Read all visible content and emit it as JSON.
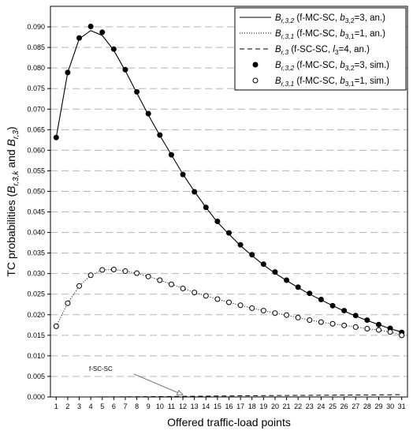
{
  "chart_data": {
    "type": "line",
    "xlabel": "Offered traffic-load points",
    "ylabel": "TC probabilities (B_{r,3,k} and B_{r,3})",
    "x": [
      1,
      2,
      3,
      4,
      5,
      6,
      7,
      8,
      9,
      10,
      11,
      12,
      13,
      14,
      15,
      16,
      17,
      18,
      19,
      20,
      21,
      22,
      23,
      24,
      25,
      26,
      27,
      28,
      29,
      30,
      31
    ],
    "xlim": [
      0.5,
      31.5
    ],
    "ylim": [
      0,
      0.095
    ],
    "yticks": [
      "0.000",
      "0.005",
      "0.010",
      "0.015",
      "0.020",
      "0.025",
      "0.030",
      "0.035",
      "0.040",
      "0.045",
      "0.050",
      "0.055",
      "0.060",
      "0.065",
      "0.070",
      "0.075",
      "0.080",
      "0.085",
      "0.090"
    ],
    "grid": "horizontal dashed",
    "legend_position": "top-right",
    "series": [
      {
        "name": "B_{r,3,2} (f-MC-SC, b_{3,2}=3, an.)",
        "style": "solid-line",
        "values": [
          0.0631,
          0.0789,
          0.0871,
          0.0891,
          0.0879,
          0.0843,
          0.0793,
          0.0739,
          0.0686,
          0.0636,
          0.0589,
          0.0542,
          0.05,
          0.0461,
          0.0425,
          0.0396,
          0.0368,
          0.0344,
          0.0321,
          0.0301,
          0.0283,
          0.0266,
          0.025,
          0.0236,
          0.0222,
          0.0209,
          0.0197,
          0.0186,
          0.0176,
          0.0166,
          0.0158
        ]
      },
      {
        "name": "B_{r,3,1} (f-MC-SC, b_{3,1}=1, an.)",
        "style": "dotted-line",
        "values": [
          0.0172,
          0.0228,
          0.027,
          0.0296,
          0.0309,
          0.031,
          0.0306,
          0.0301,
          0.0293,
          0.0284,
          0.0274,
          0.0264,
          0.0254,
          0.0246,
          0.0238,
          0.023,
          0.0223,
          0.0216,
          0.021,
          0.0204,
          0.0199,
          0.0193,
          0.0187,
          0.0182,
          0.0178,
          0.0174,
          0.017,
          0.0166,
          0.0163,
          0.0158,
          0.015
        ]
      },
      {
        "name": "B_{r,3} (f-SC-SC, l_3=4, an.)",
        "style": "dashed-line",
        "values": [
          0,
          0,
          0,
          0,
          1e-05,
          2e-05,
          3e-05,
          5e-05,
          7e-05,
          0.0001,
          0.00012,
          0.00015,
          0.00018,
          0.0002,
          0.00023,
          0.00025,
          0.00028,
          0.0003,
          0.00032,
          0.00034,
          0.00036,
          0.00038,
          0.0004,
          0.00042,
          0.00044,
          0.00046,
          0.00048,
          0.0005,
          0.00052,
          0.00054,
          0.00056
        ]
      },
      {
        "name": "B_{r,3,2} (f-MC-SC, b_{3,2}=3, sim.)",
        "style": "filled-circles",
        "values": [
          0.0631,
          0.0789,
          0.0873,
          0.0901,
          0.0887,
          0.0846,
          0.0796,
          0.0742,
          0.0689,
          0.0637,
          0.0589,
          0.0541,
          0.0499,
          0.0461,
          0.0427,
          0.0399,
          0.037,
          0.0346,
          0.0323,
          0.0304,
          0.0284,
          0.0267,
          0.0252,
          0.0237,
          0.0222,
          0.021,
          0.0198,
          0.0187,
          0.0176,
          0.0167,
          0.0157
        ]
      },
      {
        "name": "B_{r,3,1} (f-MC-SC, b_{3,1}=1, sim.)",
        "style": "open-circles",
        "values": [
          0.0172,
          0.0228,
          0.027,
          0.0296,
          0.0309,
          0.031,
          0.0306,
          0.0301,
          0.0293,
          0.0284,
          0.0274,
          0.0264,
          0.0254,
          0.0246,
          0.0238,
          0.023,
          0.0223,
          0.0216,
          0.021,
          0.0204,
          0.0199,
          0.0193,
          0.0187,
          0.0182,
          0.0178,
          0.0174,
          0.017,
          0.0166,
          0.0163,
          0.0158,
          0.015
        ]
      }
    ],
    "legend": [
      {
        "base": "B",
        "sub": "r,3,2",
        "pre": " (f-MC-SC, ",
        "pvar": "b",
        "psub": "3,2",
        "post": "=3, an.)"
      },
      {
        "base": "B",
        "sub": "r,3,1",
        "pre": " (f-MC-SC, ",
        "pvar": "b",
        "psub": "3,1",
        "post": "=1, an.)"
      },
      {
        "base": "B",
        "sub": "r,3",
        "pre": " (f-SC-SC, ",
        "pvar": "l",
        "psub": "3",
        "post": "=4, an.)"
      },
      {
        "base": "B",
        "sub": "r,3,2",
        "pre": " (f-MC-SC, ",
        "pvar": "b",
        "psub": "3,2",
        "post": "=3, sim.)"
      },
      {
        "base": "B",
        "sub": "r,3,1",
        "pre": " (f-MC-SC, ",
        "pvar": "b",
        "psub": "3,1",
        "post": "=1, sim.)"
      }
    ],
    "annotation": {
      "text": "f-SC-SC",
      "points_to_x": 12,
      "points_to_y": 0.00015
    }
  }
}
